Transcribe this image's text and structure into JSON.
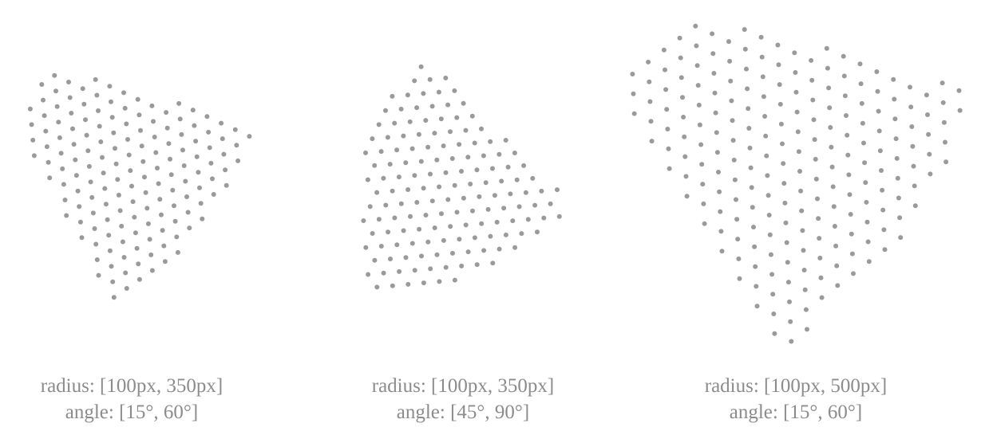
{
  "dot_color": "#9a9a9a",
  "panels": [
    {
      "radius_label": "radius: [100px, 350px]",
      "angle_label": "angle: [15°, 60°]",
      "radius_range": [
        100,
        350
      ],
      "angle_range_deg": [
        15,
        60
      ]
    },
    {
      "radius_label": "radius: [100px, 350px]",
      "angle_label": "angle: [45°, 90°]",
      "radius_range": [
        100,
        350
      ],
      "angle_range_deg": [
        45,
        90
      ]
    },
    {
      "radius_label": "radius: [100px, 500px]",
      "angle_label": "angle: [15°, 60°]",
      "radius_range": [
        100,
        500
      ],
      "angle_range_deg": [
        15,
        60
      ]
    }
  ]
}
